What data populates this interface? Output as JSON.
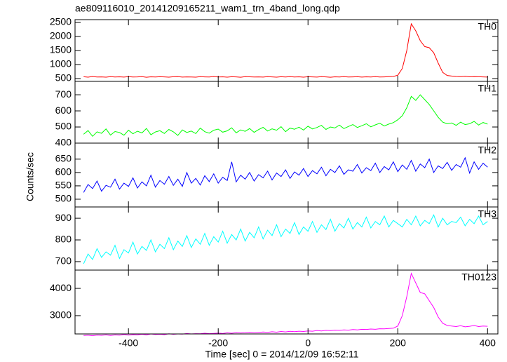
{
  "chart_data": {
    "type": "line",
    "title": "ae809116010_20141209165211_wam1_trn_4band_long.qdp",
    "xlabel": "Time [sec] 0 = 2014/12/09 16:52:11",
    "ylabel": "Counts/sec",
    "xlim": [
      -519,
      423
    ],
    "xticks": [
      -400,
      -200,
      0,
      200,
      400
    ],
    "x": [
      -500,
      -490,
      -480,
      -470,
      -460,
      -450,
      -440,
      -430,
      -420,
      -410,
      -400,
      -390,
      -380,
      -370,
      -360,
      -350,
      -340,
      -330,
      -320,
      -310,
      -300,
      -290,
      -280,
      -270,
      -260,
      -250,
      -240,
      -230,
      -220,
      -210,
      -200,
      -190,
      -180,
      -170,
      -160,
      -150,
      -140,
      -130,
      -120,
      -110,
      -100,
      -90,
      -80,
      -70,
      -60,
      -50,
      -40,
      -30,
      -20,
      -10,
      0,
      10,
      20,
      30,
      40,
      50,
      60,
      70,
      80,
      90,
      100,
      110,
      120,
      130,
      140,
      150,
      160,
      170,
      180,
      190,
      200,
      210,
      220,
      230,
      240,
      250,
      260,
      270,
      280,
      290,
      300,
      310,
      320,
      330,
      340,
      350,
      360,
      370,
      380,
      390,
      400
    ],
    "series": [
      {
        "name": "TH0",
        "color": "#ff0000",
        "ylim": [
          400,
          2600
        ],
        "yticks": [
          500,
          1000,
          1500,
          2000,
          2500
        ],
        "values": [
          565,
          550,
          572,
          558,
          561,
          549,
          570,
          556,
          563,
          552,
          568,
          557,
          560,
          571,
          548,
          562,
          555,
          566,
          559,
          551,
          564,
          570,
          553,
          561,
          557,
          549,
          567,
          560,
          554,
          572,
          558,
          563,
          551,
          566,
          559,
          547,
          570,
          562,
          555,
          561,
          553,
          568,
          560,
          549,
          564,
          557,
          571,
          556,
          562,
          550,
          566,
          559,
          553,
          569,
          561,
          548,
          563,
          557,
          570,
          554,
          560,
          566,
          552,
          563,
          558,
          571,
          556,
          561,
          567,
          574,
          620,
          860,
          1500,
          2450,
          2200,
          1850,
          1640,
          1600,
          1420,
          1050,
          720,
          610,
          590,
          575,
          568,
          580,
          562,
          571,
          565,
          559,
          552
        ]
      },
      {
        "name": "TH1",
        "color": "#00ff00",
        "ylim": [
          400,
          783
        ],
        "yticks": [
          400,
          500,
          600,
          700
        ],
        "values": [
          455,
          478,
          442,
          470,
          461,
          488,
          450,
          472,
          466,
          449,
          480,
          458,
          474,
          463,
          491,
          452,
          469,
          477,
          460,
          485,
          470,
          448,
          482,
          466,
          475,
          459,
          493,
          471,
          462,
          480,
          487,
          468,
          476,
          495,
          464,
          482,
          473,
          490,
          467,
          484,
          498,
          475,
          489,
          480,
          502,
          471,
          493,
          486,
          499,
          481,
          505,
          488,
          497,
          510,
          485,
          500,
          494,
          512,
          490,
          503,
          515,
          497,
          508,
          520,
          501,
          513,
          523,
          506,
          518,
          527,
          545,
          570,
          620,
          690,
          665,
          700,
          670,
          640,
          600,
          560,
          530,
          520,
          525,
          510,
          530,
          515,
          520,
          535,
          512,
          528,
          518
        ]
      },
      {
        "name": "TH2",
        "color": "#0000ff",
        "ylim": [
          471,
          710
        ],
        "yticks": [
          500,
          550,
          600,
          650
        ],
        "values": [
          525,
          555,
          540,
          568,
          530,
          552,
          545,
          575,
          538,
          560,
          548,
          580,
          542,
          565,
          550,
          590,
          545,
          570,
          556,
          585,
          552,
          575,
          548,
          600,
          560,
          578,
          553,
          588,
          566,
          595,
          560,
          582,
          570,
          640,
          565,
          590,
          575,
          600,
          568,
          592,
          580,
          605,
          572,
          598,
          585,
          610,
          578,
          602,
          590,
          615,
          585,
          607,
          595,
          620,
          588,
          612,
          600,
          625,
          593,
          610,
          605,
          630,
          598,
          618,
          607,
          635,
          600,
          622,
          610,
          640,
          603,
          628,
          612,
          645,
          605,
          632,
          618,
          650,
          600,
          625,
          615,
          638,
          608,
          630,
          620,
          655,
          598,
          640,
          612,
          635,
          620
        ]
      },
      {
        "name": "TH3",
        "color": "#00ffff",
        "ylim": [
          661,
          952
        ],
        "yticks": [
          700,
          800,
          900
        ],
        "values": [
          690,
          735,
          710,
          760,
          720,
          745,
          730,
          775,
          715,
          755,
          740,
          790,
          735,
          770,
          752,
          800,
          745,
          780,
          760,
          810,
          755,
          795,
          770,
          820,
          765,
          805,
          780,
          830,
          775,
          815,
          790,
          840,
          785,
          825,
          800,
          850,
          795,
          835,
          810,
          860,
          805,
          845,
          820,
          870,
          815,
          850,
          830,
          880,
          825,
          860,
          840,
          885,
          835,
          870,
          848,
          895,
          840,
          875,
          855,
          900,
          850,
          880,
          860,
          905,
          855,
          885,
          870,
          910,
          860,
          890,
          875,
          860,
          895,
          870,
          910,
          865,
          890,
          875,
          915,
          860,
          900,
          870,
          885,
          880,
          905,
          865,
          895,
          875,
          910,
          870,
          885
        ]
      },
      {
        "name": "TH0123",
        "color": "#ff00ff",
        "ylim": [
          2330,
          4670
        ],
        "yticks": [
          3000,
          4000
        ],
        "values": [
          2270,
          2285,
          2262,
          2290,
          2278,
          2300,
          2270,
          2295,
          2285,
          2310,
          2290,
          2305,
          2298,
          2320,
          2300,
          2330,
          2310,
          2320,
          2305,
          2335,
          2318,
          2330,
          2325,
          2345,
          2330,
          2340,
          2335,
          2355,
          2340,
          2350,
          2360,
          2345,
          2370,
          2355,
          2380,
          2365,
          2375,
          2390,
          2370,
          2385,
          2400,
          2390,
          2410,
          2395,
          2420,
          2405,
          2425,
          2415,
          2430,
          2420,
          2440,
          2430,
          2455,
          2440,
          2460,
          2450,
          2470,
          2460,
          2480,
          2470,
          2490,
          2480,
          2500,
          2495,
          2510,
          2500,
          2520,
          2515,
          2530,
          2540,
          2620,
          3000,
          3700,
          4550,
          4200,
          3850,
          3800,
          3550,
          3300,
          2950,
          2720,
          2640,
          2620,
          2600,
          2630,
          2590,
          2610,
          2640,
          2600,
          2620,
          2610
        ]
      }
    ]
  }
}
